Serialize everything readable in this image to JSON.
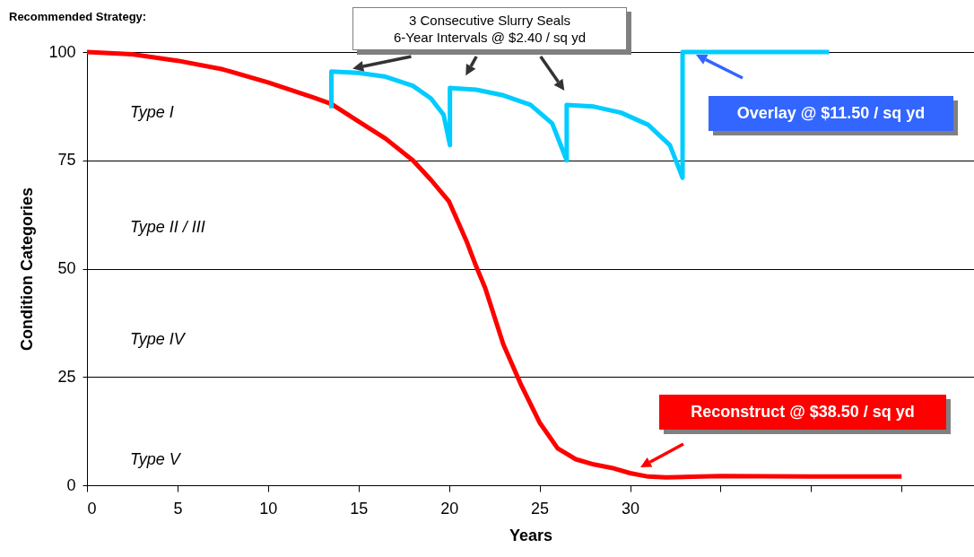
{
  "chart_data": {
    "type": "line",
    "title": "Recommended Strategy:",
    "xlabel": "Years",
    "ylabel": "Condition Categories",
    "xlim": [
      0,
      49
    ],
    "xticks": [
      0,
      5,
      10,
      15,
      20,
      25,
      30,
      {
        "value": 35,
        "label": null
      },
      {
        "value": 40,
        "label": null
      },
      {
        "value": 45,
        "label": null
      }
    ],
    "ylim": [
      0,
      100
    ],
    "yticks": [
      0,
      25,
      50,
      75,
      100
    ],
    "grid": "y",
    "line_style": "solid",
    "series": [
      {
        "color": "#ff0000",
        "x": [
          0,
          2.5,
          5,
          7.5,
          10,
          12.5,
          13.5,
          15,
          16.5,
          18,
          19,
          20,
          21,
          21.5,
          22,
          23,
          24,
          25,
          26,
          27,
          28,
          29,
          30,
          31,
          32,
          35,
          40,
          45
        ],
        "values": [
          100,
          99.5,
          98,
          96,
          93,
          89.5,
          88,
          84,
          80,
          75,
          70.5,
          65.5,
          56,
          50.5,
          45.5,
          32.5,
          23,
          14.5,
          8.5,
          6,
          4.8,
          4,
          2.8,
          2,
          1.8,
          2.1,
          2,
          2
        ]
      },
      {
        "color": "#00ccff",
        "x": [
          13.5,
          13.5,
          15,
          16.5,
          18,
          19,
          19.7,
          20.05,
          20.05,
          21.5,
          23,
          24.5,
          25.7,
          26.5,
          26.5,
          28,
          29.5,
          31,
          32.2,
          32.9,
          32.9,
          41
        ],
        "values": [
          87,
          95.5,
          95.2,
          94.3,
          92.2,
          89.3,
          85.5,
          78.5,
          91.7,
          91.3,
          90,
          87.8,
          83.5,
          75,
          87.8,
          87.4,
          86,
          83.2,
          78.5,
          71,
          100,
          100
        ]
      }
    ],
    "annotations": [
      "3 Consecutive Slurry Seals\n6-Year Intervals @ $2.40 / sq yd",
      "Overlay @ $11.50 / sq yd",
      "Reconstruct @ $38.50 / sq yd",
      "Type I",
      "Type II / III",
      "Type IV",
      "Type V"
    ]
  }
}
